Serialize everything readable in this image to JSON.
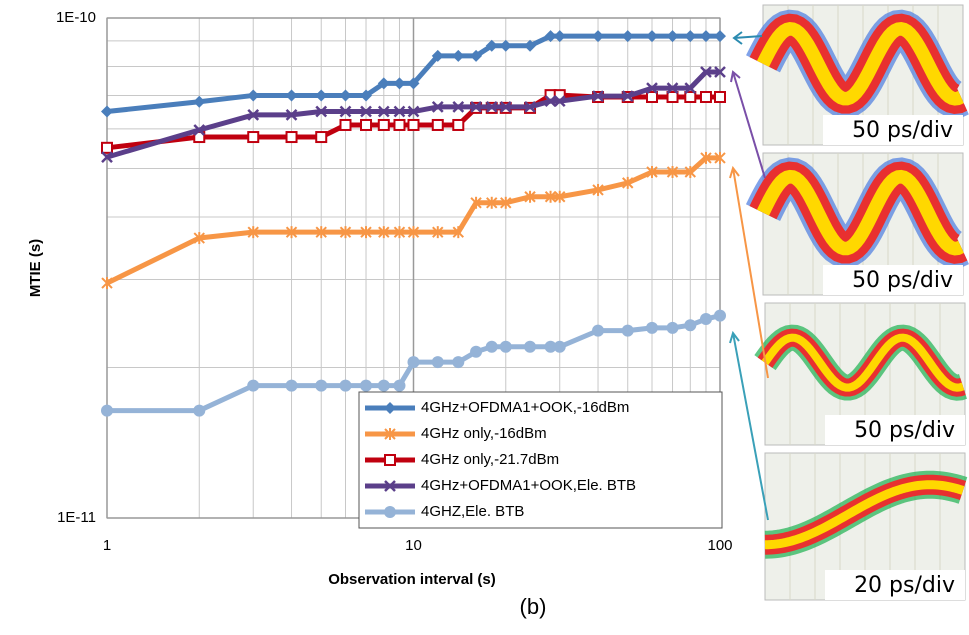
{
  "chart_data": {
    "type": "line",
    "x_label": "Observation interval (s)",
    "y_label": "MTIE (s)",
    "caption": "(b)",
    "xlog": true,
    "ylog": true,
    "grid": true,
    "legend": "lower right",
    "xlim": [
      1,
      100
    ],
    "xticks": [
      1,
      10,
      100
    ],
    "ylim": [
      1e-11,
      1e-10
    ],
    "yticks": [
      {
        "value": 1e-11,
        "label": "1E-11"
      },
      {
        "value": 1e-10,
        "label": "1E-10"
      }
    ],
    "x": [
      1,
      2,
      3,
      4,
      5,
      6,
      7,
      8,
      9,
      10,
      12,
      14,
      16,
      18,
      20,
      24,
      28,
      30,
      40,
      50,
      60,
      70,
      80,
      90,
      100
    ],
    "series": [
      {
        "name": "4GHz+OFDMA1+OOK,-16dBm",
        "color": "#4a7ebb",
        "marker": "diamond",
        "values": [
          6.5e-11,
          6.8e-11,
          7e-11,
          7e-11,
          7e-11,
          7e-11,
          7e-11,
          7.4e-11,
          7.4e-11,
          7.4e-11,
          8.4e-11,
          8.4e-11,
          8.4e-11,
          8.8e-11,
          8.8e-11,
          8.8e-11,
          9.2e-11,
          9.2e-11,
          9.2e-11,
          9.2e-11,
          9.2e-11,
          9.2e-11,
          9.2e-11,
          9.2e-11,
          9.2e-11
        ]
      },
      {
        "name": "4GHz only,-16dBm",
        "color": "#f79646",
        "marker": "asterisk",
        "values": [
          2.95e-11,
          3.63e-11,
          3.73e-11,
          3.73e-11,
          3.73e-11,
          3.73e-11,
          3.73e-11,
          3.73e-11,
          3.73e-11,
          3.73e-11,
          3.73e-11,
          3.73e-11,
          4.27e-11,
          4.27e-11,
          4.27e-11,
          4.39e-11,
          4.39e-11,
          4.39e-11,
          4.53e-11,
          4.68e-11,
          4.92e-11,
          4.92e-11,
          4.92e-11,
          5.25e-11,
          5.25e-11
        ]
      },
      {
        "name": "4GHz only,-21.7dBm",
        "color": "#c0000f",
        "marker": "square",
        "values": [
          5.5e-11,
          5.78e-11,
          5.78e-11,
          5.78e-11,
          5.78e-11,
          6.11e-11,
          6.11e-11,
          6.11e-11,
          6.11e-11,
          6.11e-11,
          6.11e-11,
          6.11e-11,
          6.61e-11,
          6.61e-11,
          6.61e-11,
          6.61e-11,
          7.01e-11,
          7.01e-11,
          6.95e-11,
          6.95e-11,
          6.95e-11,
          6.95e-11,
          6.95e-11,
          6.95e-11,
          6.95e-11
        ]
      },
      {
        "name": "4GHz+OFDMA1+OOK,Ele. BTB",
        "color": "#5b3f8a",
        "marker": "x",
        "values": [
          5.27e-11,
          5.97e-11,
          6.4e-11,
          6.4e-11,
          6.5e-11,
          6.5e-11,
          6.5e-11,
          6.5e-11,
          6.5e-11,
          6.5e-11,
          6.64e-11,
          6.64e-11,
          6.64e-11,
          6.64e-11,
          6.64e-11,
          6.64e-11,
          6.82e-11,
          6.82e-11,
          6.98e-11,
          6.98e-11,
          7.24e-11,
          7.24e-11,
          7.24e-11,
          7.8e-11,
          7.8e-11
        ]
      },
      {
        "name": "4GHZ,Ele. BTB",
        "color": "#95b3d7",
        "marker": "circle",
        "values": [
          1.64e-11,
          1.64e-11,
          1.84e-11,
          1.84e-11,
          1.84e-11,
          1.84e-11,
          1.84e-11,
          1.84e-11,
          1.84e-11,
          2.05e-11,
          2.05e-11,
          2.05e-11,
          2.15e-11,
          2.2e-11,
          2.2e-11,
          2.2e-11,
          2.2e-11,
          2.2e-11,
          2.37e-11,
          2.37e-11,
          2.4e-11,
          2.4e-11,
          2.43e-11,
          2.5e-11,
          2.54e-11
        ]
      }
    ],
    "panels": [
      {
        "label": "50 ps/div"
      },
      {
        "label": "50 ps/div"
      },
      {
        "label": "50 ps/div"
      },
      {
        "label": "20 ps/div"
      }
    ]
  }
}
